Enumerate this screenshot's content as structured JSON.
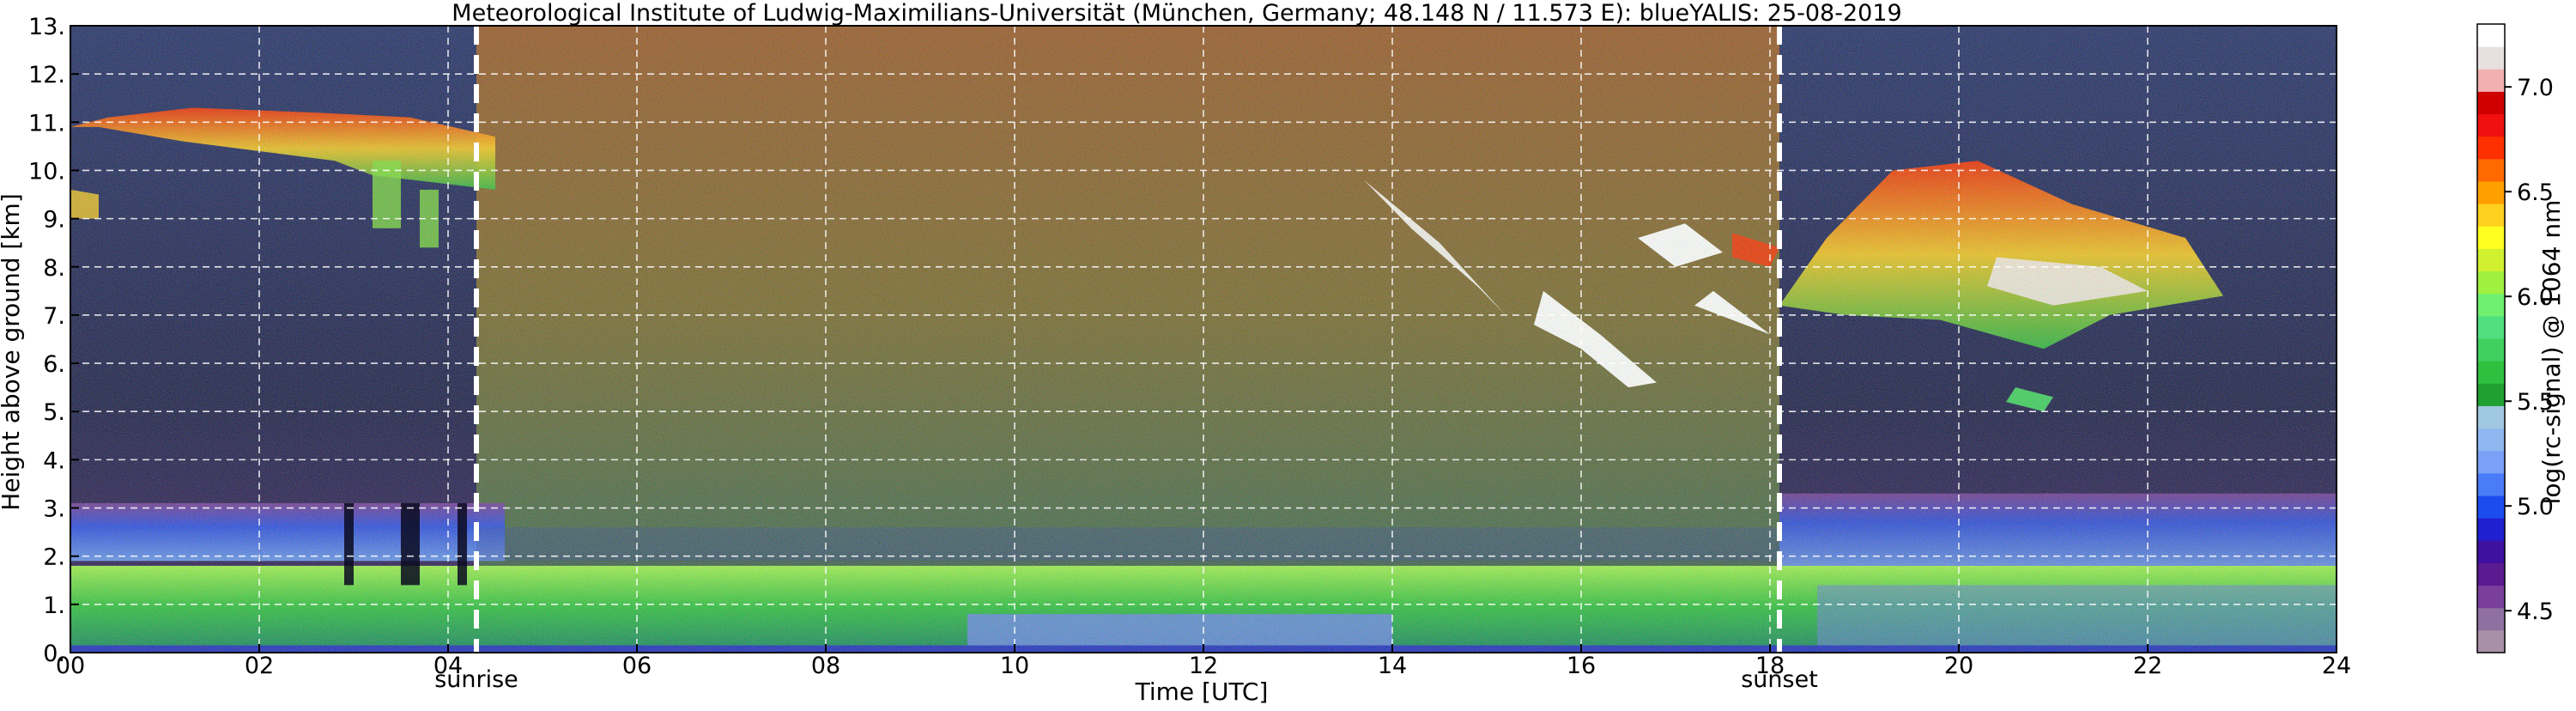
{
  "chart_data": {
    "type": "heatmap",
    "title": "Meteorological Institute of Ludwig-Maximilians-Universität (München, Germany; 48.148 N / 11.573 E):    blueYALIS: 25-08-2019",
    "xlabel": "Time [UTC]",
    "ylabel": "Height above ground [km]",
    "xlim": [
      0,
      24
    ],
    "ylim": [
      0,
      13
    ],
    "x_ticks": [
      0,
      2,
      4,
      6,
      8,
      10,
      12,
      14,
      16,
      18,
      20,
      22,
      24
    ],
    "x_tick_labels": [
      "00",
      "02",
      "04",
      "06",
      "08",
      "10",
      "12",
      "14",
      "16",
      "18",
      "20",
      "22",
      "24"
    ],
    "y_ticks": [
      0,
      1,
      2,
      3,
      4,
      5,
      6,
      7,
      8,
      9,
      10,
      11,
      12,
      13
    ],
    "y_tick_labels": [
      "0.",
      "1.",
      "2.",
      "3.",
      "4.",
      "5.",
      "6.",
      "7.",
      "8.",
      "9.",
      "10.",
      "11.",
      "12.",
      "13."
    ],
    "grid": true,
    "markers": [
      {
        "label": "sunrise",
        "time": 4.3
      },
      {
        "label": "sunset",
        "time": 18.1
      }
    ],
    "colorbar": {
      "label": "log(rc-signal) @ 1064 nm",
      "range": [
        4.3,
        7.3
      ],
      "ticks": [
        4.5,
        5.0,
        5.5,
        6.0,
        6.5,
        7.0
      ],
      "tick_labels": [
        "4.5",
        "5.0",
        "5.5",
        "6.0",
        "6.5",
        "7.0"
      ],
      "colors": [
        "#a890a8",
        "#9070a0",
        "#7a3f9a",
        "#5a1a90",
        "#4010a0",
        "#2020d0",
        "#1c4cf0",
        "#4a7cf8",
        "#7aa0f8",
        "#90b8f0",
        "#a0c8e0",
        "#20a030",
        "#30c040",
        "#40d060",
        "#50e080",
        "#70f070",
        "#a0f040",
        "#d0f030",
        "#ffff20",
        "#ffd020",
        "#ffa000",
        "#ff6a00",
        "#ff3000",
        "#f01010",
        "#d00000",
        "#f0b0b0",
        "#e8e0e0",
        "#ffffff"
      ]
    },
    "layers": [
      {
        "name": "lower boundary layer",
        "from_km": 0.1,
        "to_km": 1.8,
        "color": "#30c040"
      },
      {
        "name": "residual layer",
        "from_km": 1.9,
        "to_km": 3.1,
        "color": "#4a6cf0"
      },
      {
        "name": "daytime background",
        "from_time": 4.3,
        "to_time": 18.1,
        "color": "#8a6a30"
      },
      {
        "name": "morning cirrus",
        "time_range": [
          0,
          4.5
        ],
        "height_km": [
          9,
          11.3
        ],
        "color": "#ff3000"
      },
      {
        "name": "evening cirrus",
        "time_range": [
          18.1,
          22.8
        ],
        "height_km": [
          6.3,
          10.3
        ],
        "color": "#ffd020"
      },
      {
        "name": "afternoon cloud streak",
        "time_range": [
          13.7,
          17.3
        ],
        "height_km": [
          5.4,
          10
        ],
        "color": "#ffffff"
      }
    ]
  }
}
